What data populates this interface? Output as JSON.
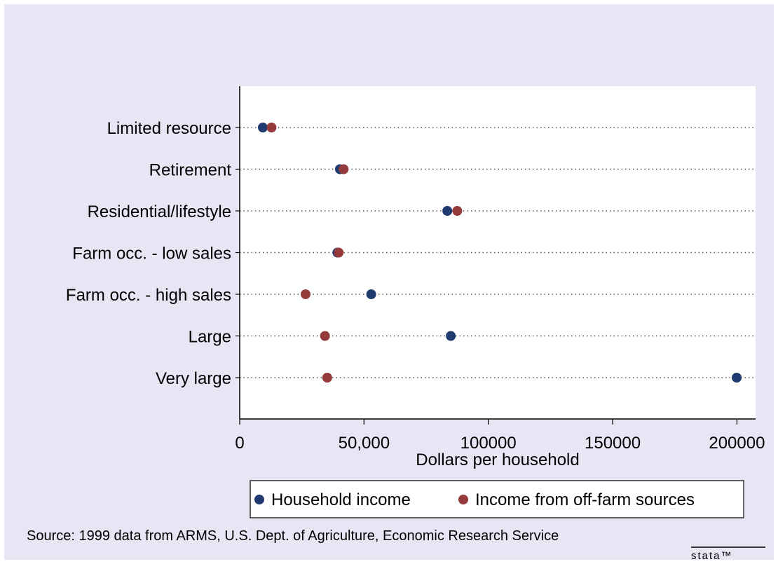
{
  "chart_data": {
    "type": "scatter",
    "orientation": "horizontal-dot",
    "categories": [
      "Limited resource",
      "Retirement",
      "Residential/lifestyle",
      "Farm occ. - low sales",
      "Farm occ. - high sales",
      "Large",
      "Very large"
    ],
    "series": [
      {
        "name": "Household income",
        "color": "#1f3a6e",
        "values": [
          9300,
          40300,
          83500,
          39300,
          52900,
          84900,
          199900
        ]
      },
      {
        "name": "Income from off-farm sources",
        "color": "#943b3b",
        "values": [
          12800,
          41800,
          87500,
          39800,
          26500,
          34300,
          35200
        ]
      }
    ],
    "xlim": [
      0,
      207500
    ],
    "xticks": [
      0,
      50000,
      100000,
      150000,
      200000
    ],
    "xtick_labels": [
      "0",
      "50,000",
      "100000",
      "150000",
      "200000"
    ],
    "xlabel": "Dollars per household",
    "grid": "dotted horizontal lines per category",
    "legend_position": "bottom"
  },
  "footer": {
    "source": "Source:  1999 data from ARMS, U.S. Dept. of Agriculture, Economic Research Service",
    "logo": "stata™"
  },
  "colors": {
    "background": "#e6e6f4",
    "plot_background": "#ffffff"
  }
}
